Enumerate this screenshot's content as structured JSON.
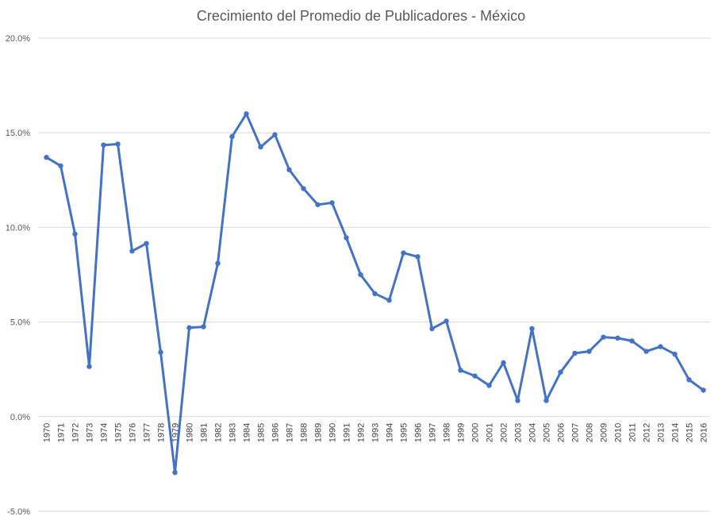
{
  "chart_data": {
    "type": "line",
    "title": "Crecimiento del Promedio de Publicadores - México",
    "xlabel": "",
    "ylabel": "",
    "ylim": [
      -0.05,
      0.2
    ],
    "yticks": [
      "-5.0%",
      "0.0%",
      "5.0%",
      "10.0%",
      "15.0%",
      "20.0%"
    ],
    "ytick_values": [
      -0.05,
      0,
      0.05,
      0.1,
      0.15,
      0.2
    ],
    "grid": true,
    "legend": "none",
    "line_color": "#4472C4",
    "grid_color": "#D9D9D9",
    "categories": [
      "1970",
      "1971",
      "1972",
      "1973",
      "1974",
      "1975",
      "1976",
      "1977",
      "1978",
      "1979",
      "1980",
      "1981",
      "1982",
      "1983",
      "1984",
      "1985",
      "1986",
      "1987",
      "1988",
      "1989",
      "1990",
      "1991",
      "1992",
      "1993",
      "1994",
      "1995",
      "1996",
      "1997",
      "1998",
      "1999",
      "2000",
      "2001",
      "2002",
      "2003",
      "2004",
      "2005",
      "2006",
      "2007",
      "2008",
      "2009",
      "2010",
      "2011",
      "2012",
      "2013",
      "2014",
      "2015",
      "2016"
    ],
    "values": [
      0.137,
      0.1325,
      0.0965,
      0.0265,
      0.1435,
      0.144,
      0.0875,
      0.0915,
      0.034,
      -0.0295,
      0.047,
      0.0475,
      0.081,
      0.148,
      0.16,
      0.1425,
      0.149,
      0.1305,
      0.1205,
      0.112,
      0.113,
      0.0945,
      0.075,
      0.065,
      0.0615,
      0.0865,
      0.0845,
      0.0465,
      0.0505,
      0.0245,
      0.0215,
      0.0165,
      0.0285,
      0.0085,
      0.0465,
      0.0085,
      0.0235,
      0.0335,
      0.0345,
      0.042,
      0.0415,
      0.04,
      0.0345,
      0.037,
      0.033,
      0.0195,
      0.014
    ]
  }
}
